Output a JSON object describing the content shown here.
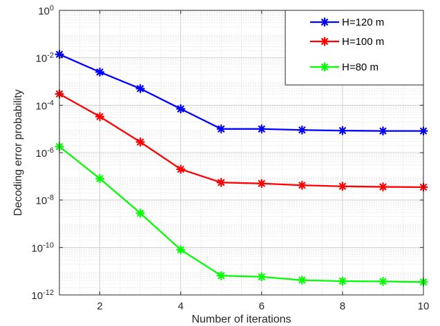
{
  "chart_data": {
    "type": "line",
    "xlabel": "Number of iterations",
    "ylabel": "Decoding error probability",
    "x": [
      1,
      2,
      3,
      4,
      5,
      6,
      7,
      8,
      9,
      10
    ],
    "xlim": [
      1,
      10
    ],
    "ylim": [
      1e-12,
      1
    ],
    "yscale": "log",
    "grid": true,
    "legend_position": "top-right",
    "xticks": [
      {
        "value": 2,
        "label": "2"
      },
      {
        "value": 4,
        "label": "4"
      },
      {
        "value": 6,
        "label": "6"
      },
      {
        "value": 8,
        "label": "8"
      },
      {
        "value": 10,
        "label": "10"
      }
    ],
    "yticks": [
      {
        "exp": 0,
        "base": "10",
        "sup": "0"
      },
      {
        "exp": -2,
        "base": "10",
        "sup": "-2"
      },
      {
        "exp": -4,
        "base": "10",
        "sup": "-4"
      },
      {
        "exp": -6,
        "base": "10",
        "sup": "-6"
      },
      {
        "exp": -8,
        "base": "10",
        "sup": "-8"
      },
      {
        "exp": -10,
        "base": "10",
        "sup": "-10"
      },
      {
        "exp": -12,
        "base": "10",
        "sup": "-12"
      }
    ],
    "series": [
      {
        "name": "H=120 m",
        "color": "#0000ff",
        "values": [
          0.014,
          0.0025,
          0.0005,
          7e-05,
          1e-05,
          1e-05,
          9e-06,
          8.5e-06,
          8.2e-06,
          8.2e-06
        ]
      },
      {
        "name": "H=100 m",
        "color": "#ff0000",
        "values": [
          0.0003,
          3.3e-05,
          2.8e-06,
          2e-07,
          5.5e-08,
          5e-08,
          4.2e-08,
          3.8e-08,
          3.6e-08,
          3.5e-08
        ]
      },
      {
        "name": "H=80 m",
        "color": "#00ff00",
        "values": [
          1.8e-06,
          8e-08,
          2.8e-09,
          8e-11,
          6.5e-12,
          5.8e-12,
          4.2e-12,
          3.8e-12,
          3.7e-12,
          3.5e-12
        ]
      }
    ]
  }
}
